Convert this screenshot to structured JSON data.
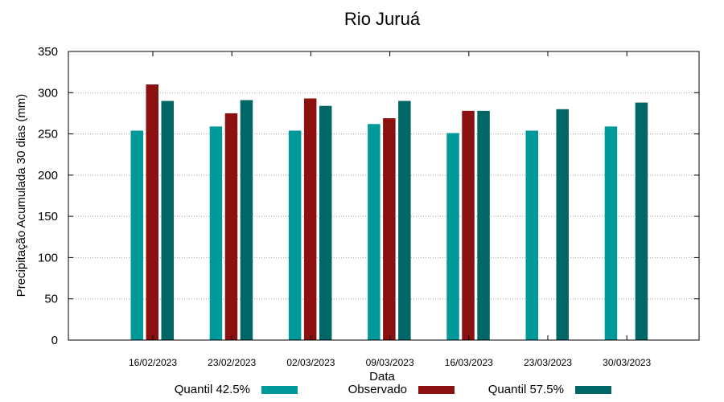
{
  "chart_data": {
    "type": "bar",
    "title": "Rio Juruá",
    "xlabel": "Data",
    "ylabel": "Precipitação Acumulada 30 dias (mm)",
    "ylim": [
      0,
      350
    ],
    "yticks": [
      0,
      50,
      100,
      150,
      200,
      250,
      300,
      350
    ],
    "grid": true,
    "legend_position": "bottom",
    "categories": [
      "16/02/2023",
      "23/02/2023",
      "02/03/2023",
      "09/03/2023",
      "16/03/2023",
      "23/03/2023",
      "30/03/2023"
    ],
    "series": [
      {
        "name": "Quantil 42.5%",
        "color": "#009999",
        "values": [
          254,
          259,
          254,
          262,
          251,
          254,
          259
        ]
      },
      {
        "name": "Observado",
        "color": "#8b1010",
        "values": [
          310,
          275,
          293,
          269,
          278,
          null,
          null
        ]
      },
      {
        "name": "Quantil 57.5%",
        "color": "#006666",
        "values": [
          290,
          291,
          284,
          290,
          278,
          280,
          288
        ]
      }
    ]
  }
}
